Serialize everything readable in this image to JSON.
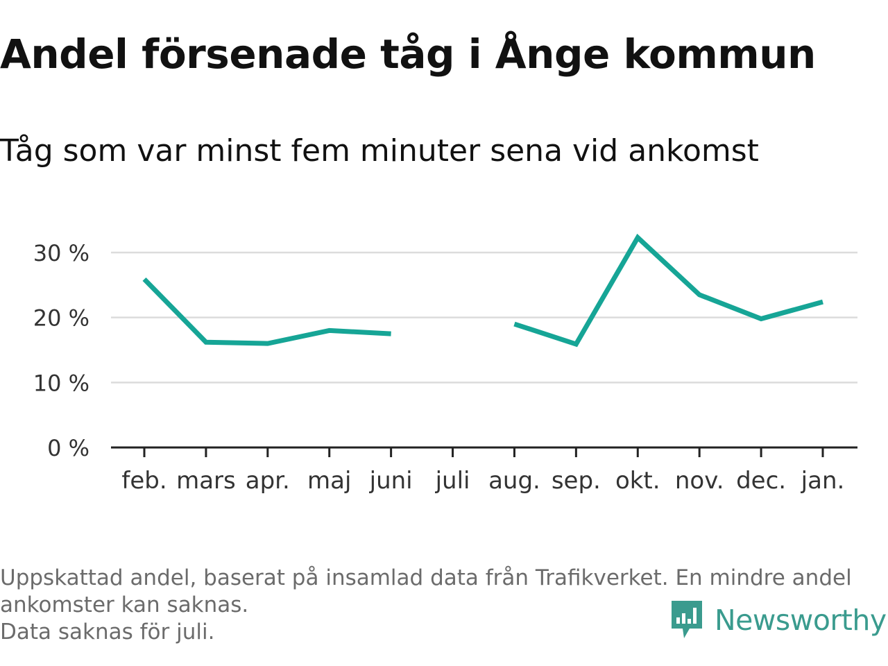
{
  "chart_data": {
    "type": "line",
    "title": "Andel försenade tåg i Ånge kommun",
    "subtitle": "Tåg som var minst fem minuter sena vid ankomst",
    "categories": [
      "feb.",
      "mars",
      "apr.",
      "maj",
      "juni",
      "juli",
      "aug.",
      "sep.",
      "okt.",
      "nov.",
      "dec.",
      "jan."
    ],
    "series": [
      {
        "values": [
          25.9,
          16.2,
          16.0,
          18.0,
          17.5,
          null,
          19.0,
          15.9,
          32.3,
          23.5,
          19.8,
          22.4
        ],
        "color": "#16a596"
      }
    ],
    "ylim": [
      0,
      30
    ],
    "yticks": [
      0,
      10,
      20,
      30
    ],
    "ytick_labels": [
      "0 %",
      "10 %",
      "20 %",
      "30 %"
    ],
    "xlabel": "",
    "ylabel": "",
    "grid": true,
    "legend": "none"
  },
  "footer": {
    "note_line1": "Uppskattad andel, baserat på insamlad data från Trafikverket. En mindre andel",
    "note_line2": "ankomster kan saknas.",
    "note_line3": "Data saknas för juli."
  },
  "brand": {
    "name": "Newsworthy",
    "logo_icon": "newsworthy-logo-icon",
    "color": "#3a9b8e"
  },
  "colors": {
    "line": "#16a596",
    "grid": "#dcdcdc",
    "axis": "#222222",
    "tick_text": "#333333"
  }
}
